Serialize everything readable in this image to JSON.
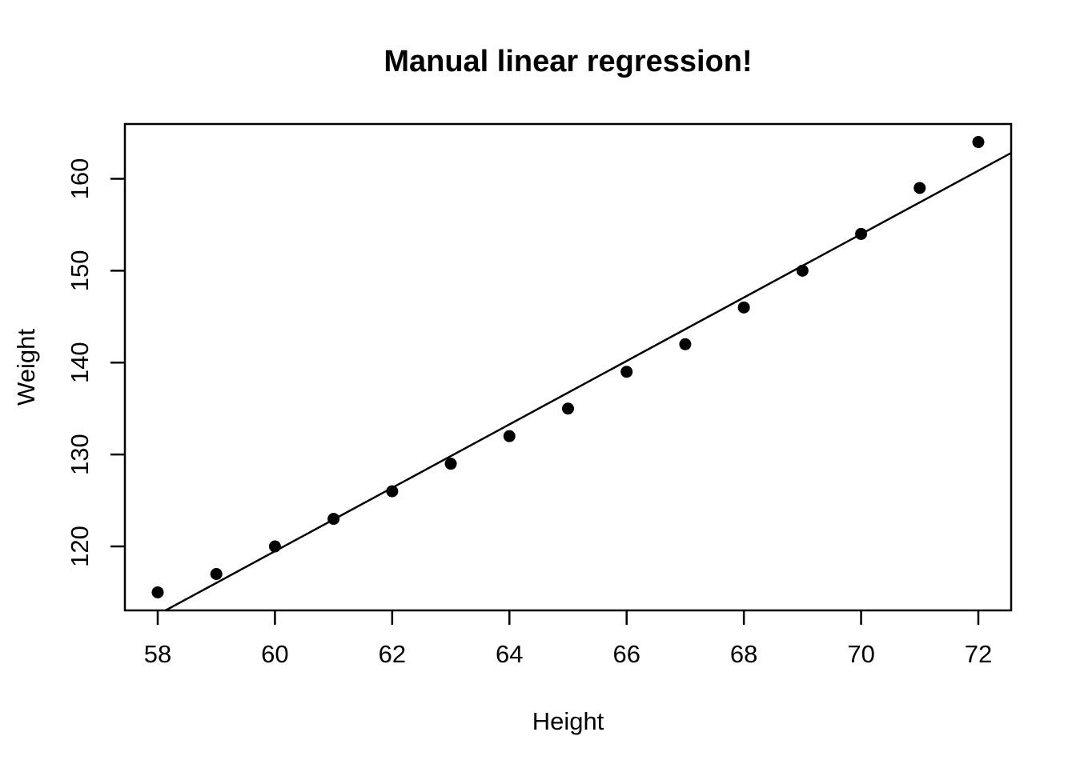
{
  "chart_data": {
    "type": "scatter",
    "title": "Manual linear regression!",
    "xlabel": "Height",
    "ylabel": "Weight",
    "x": [
      58,
      59,
      60,
      61,
      62,
      63,
      64,
      65,
      66,
      67,
      68,
      69,
      70,
      71,
      72
    ],
    "y": [
      115,
      117,
      120,
      123,
      126,
      129,
      132,
      135,
      139,
      142,
      146,
      150,
      154,
      159,
      164
    ],
    "xticks": [
      58,
      60,
      62,
      64,
      66,
      68,
      70,
      72
    ],
    "yticks": [
      120,
      130,
      140,
      150,
      160
    ],
    "xlim": [
      57.44,
      72.56
    ],
    "ylim": [
      113.04,
      165.96
    ],
    "regression_line": {
      "slope": 3.45,
      "intercept": -87.52
    },
    "point_color": "#000000",
    "line_color": "#000000",
    "axis_color": "#000000",
    "background": "#ffffff",
    "grid": "off",
    "legend": "none"
  }
}
